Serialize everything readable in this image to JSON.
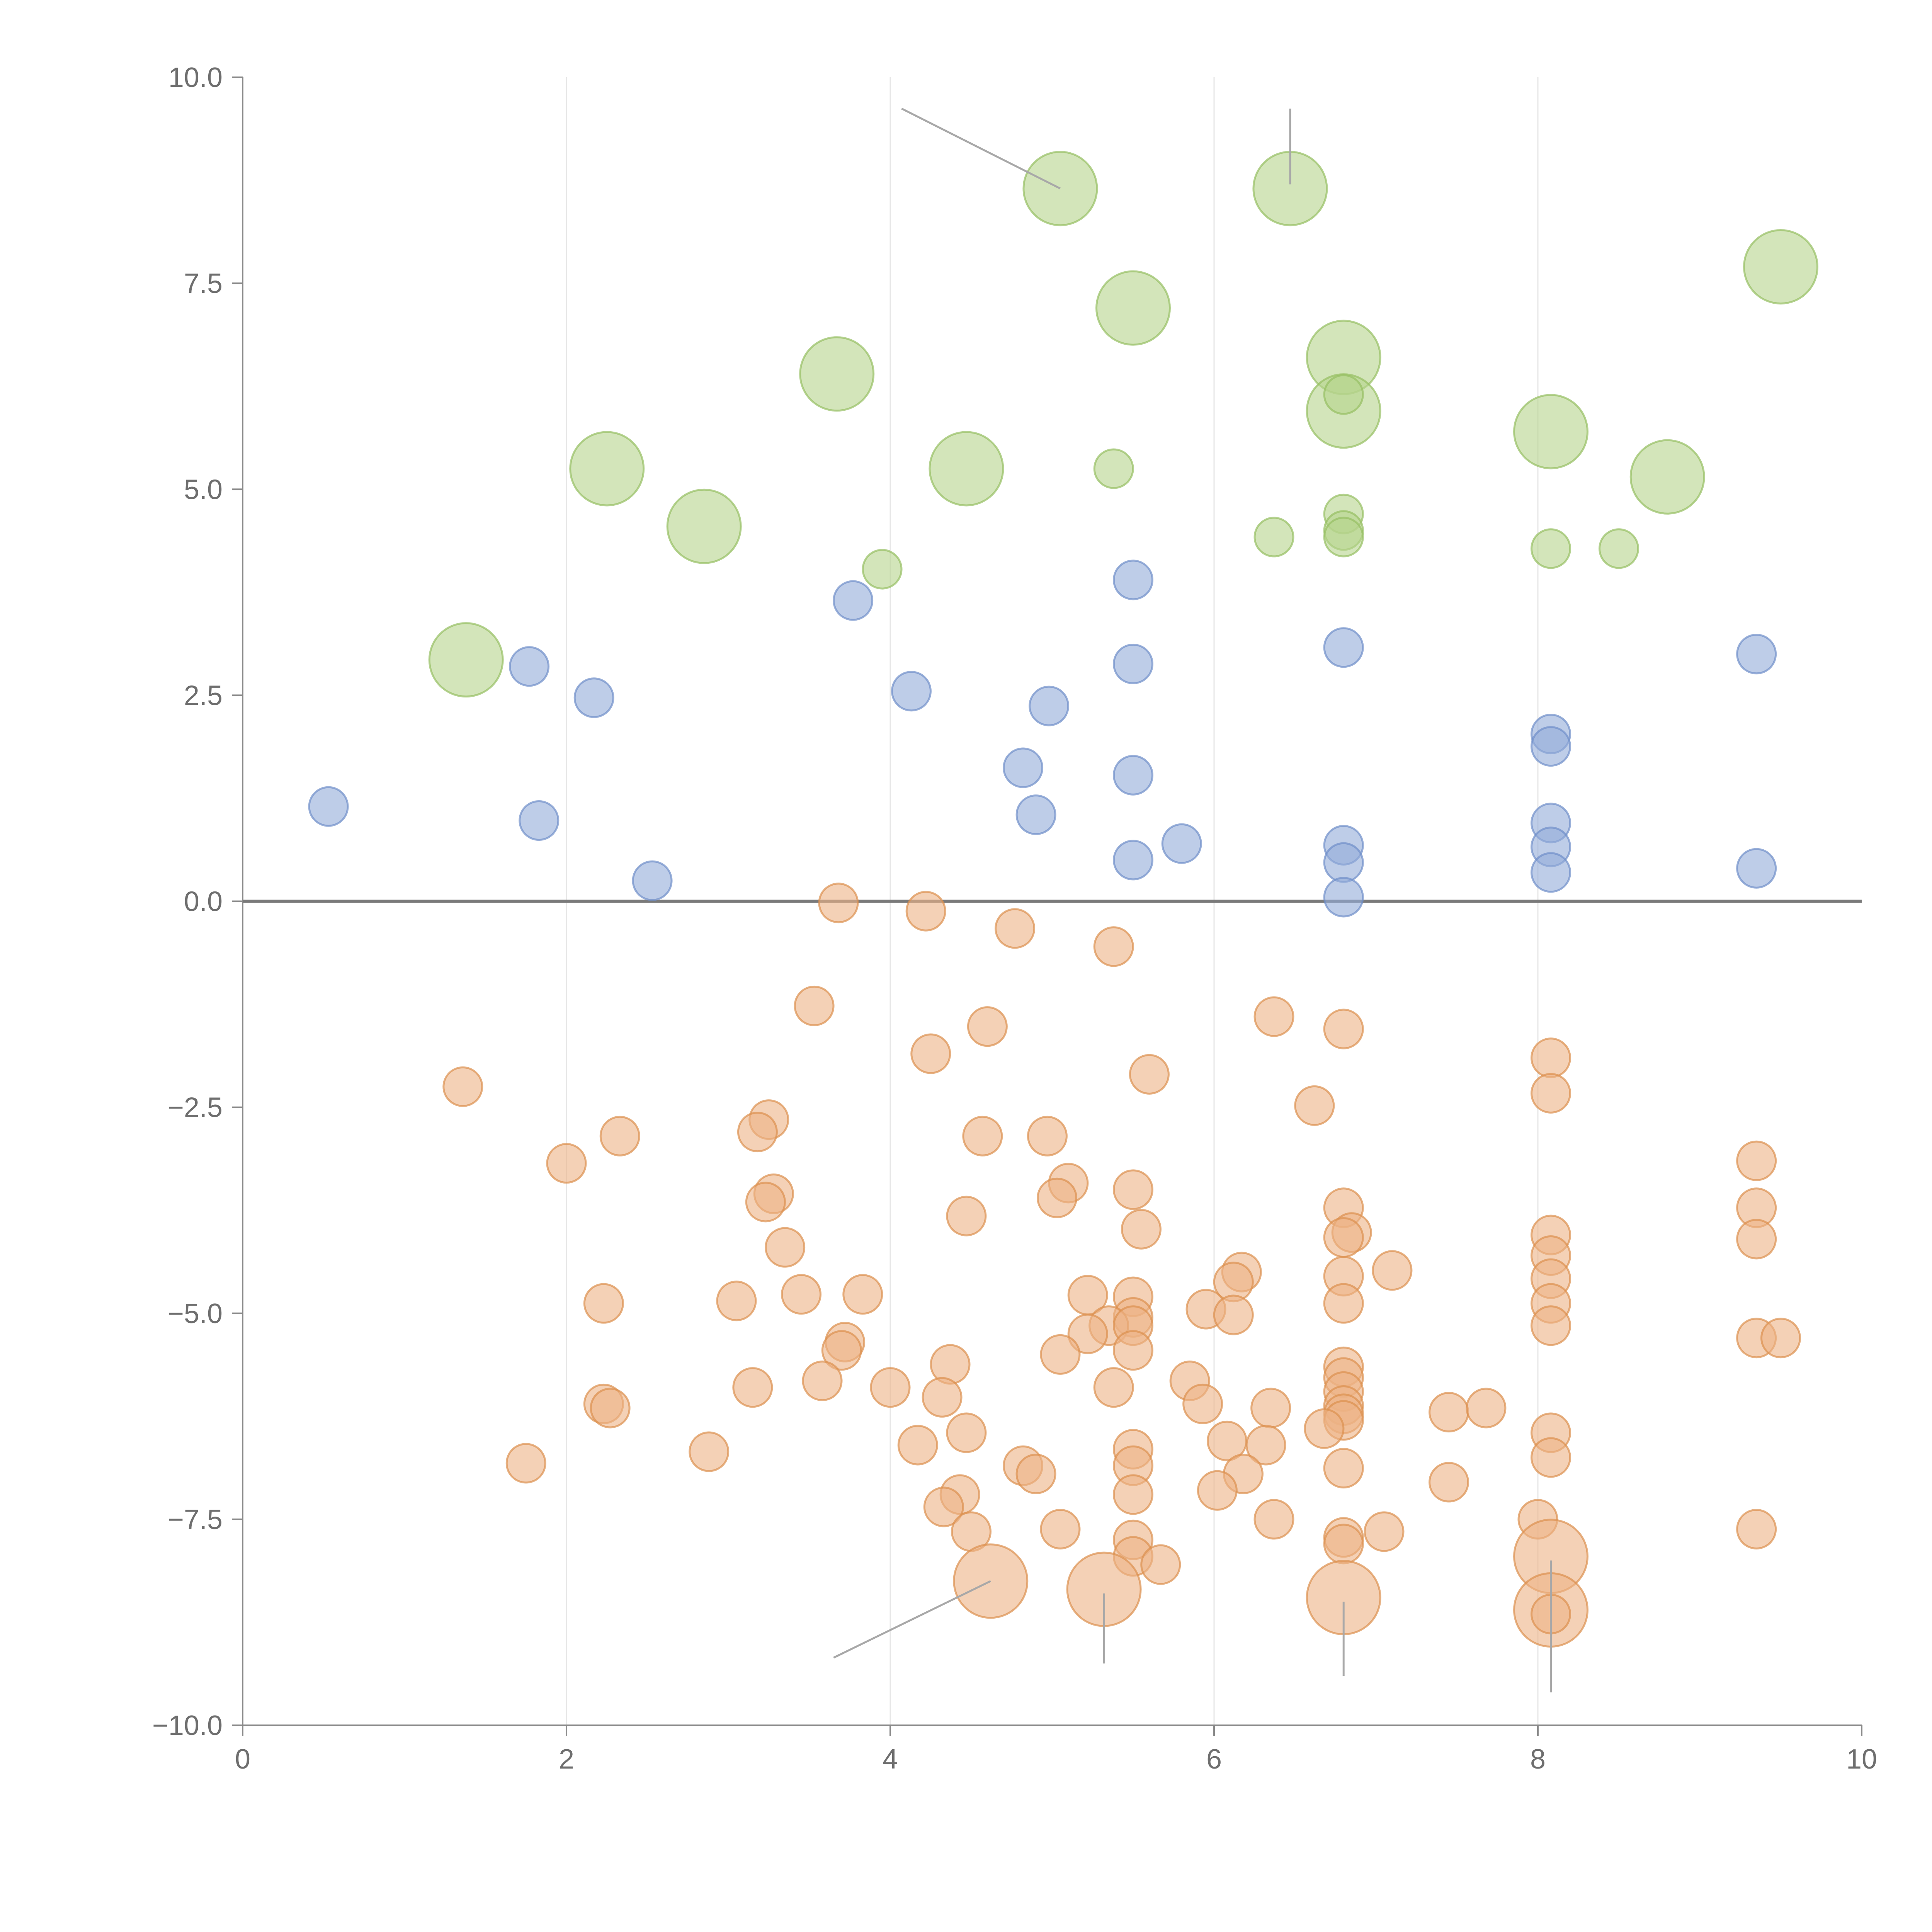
{
  "chart_data": {
    "type": "scatter",
    "title": "",
    "xlabel": "",
    "ylabel": "",
    "xlim": [
      0,
      10
    ],
    "ylim": [
      -10,
      10
    ],
    "xticks": [
      0,
      2,
      4,
      6,
      8,
      10
    ],
    "xtick_labels": [
      "0",
      "2",
      "4",
      "6",
      "8",
      "10"
    ],
    "yticks": [
      -10,
      -7.5,
      -5,
      -2.5,
      0,
      2.5,
      5,
      7.5,
      10
    ],
    "ytick_labels": [
      "−10.0",
      "−7.5",
      "−5.0",
      "−2.5",
      "0.0",
      "2.5",
      "5.0",
      "7.5",
      "10.0"
    ],
    "grid": "vertical",
    "zero_line": true,
    "series": [
      {
        "name": "green",
        "color": "#b5d38c",
        "stroke": "#96bf63",
        "points": [
          [
            5.05,
            8.65,
            2
          ],
          [
            6.47,
            8.65,
            2
          ],
          [
            9.5,
            7.7,
            2
          ],
          [
            5.5,
            7.2,
            2
          ],
          [
            3.67,
            6.4,
            2
          ],
          [
            6.8,
            6.6,
            2
          ],
          [
            6.8,
            5.95,
            2
          ],
          [
            6.8,
            6.15,
            1
          ],
          [
            8.08,
            5.7,
            2
          ],
          [
            2.25,
            5.25,
            2
          ],
          [
            4.47,
            5.25,
            2
          ],
          [
            5.38,
            5.25,
            1
          ],
          [
            8.8,
            5.15,
            2
          ],
          [
            2.85,
            4.55,
            2
          ],
          [
            6.8,
            4.7,
            1
          ],
          [
            6.8,
            4.5,
            1
          ],
          [
            6.8,
            4.42,
            1
          ],
          [
            6.37,
            4.42,
            1
          ],
          [
            8.08,
            4.28,
            1
          ],
          [
            8.5,
            4.28,
            1
          ],
          [
            3.95,
            4.03,
            1
          ],
          [
            1.38,
            2.93,
            2
          ]
        ]
      },
      {
        "name": "blue",
        "color": "#92acd9",
        "stroke": "#6f8fc9",
        "points": [
          [
            5.5,
            3.9,
            1
          ],
          [
            3.77,
            3.65,
            1
          ],
          [
            6.8,
            3.08,
            1
          ],
          [
            9.35,
            3.0,
            1
          ],
          [
            1.77,
            2.85,
            1
          ],
          [
            5.5,
            2.88,
            1
          ],
          [
            2.17,
            2.47,
            1
          ],
          [
            4.13,
            2.55,
            1
          ],
          [
            4.98,
            2.37,
            1
          ],
          [
            8.08,
            2.03,
            1
          ],
          [
            8.08,
            1.88,
            1
          ],
          [
            4.82,
            1.62,
            1
          ],
          [
            5.5,
            1.53,
            1
          ],
          [
            0.53,
            1.15,
            1
          ],
          [
            1.83,
            0.98,
            1
          ],
          [
            4.9,
            1.05,
            1
          ],
          [
            8.08,
            0.95,
            1
          ],
          [
            6.8,
            0.68,
            1
          ],
          [
            8.08,
            0.66,
            1
          ],
          [
            5.8,
            0.7,
            1
          ],
          [
            6.8,
            0.47,
            1
          ],
          [
            5.5,
            0.5,
            1
          ],
          [
            9.35,
            0.4,
            1
          ],
          [
            8.08,
            0.35,
            1
          ],
          [
            2.53,
            0.25,
            1
          ],
          [
            6.8,
            0.05,
            1
          ]
        ]
      },
      {
        "name": "orange",
        "color": "#edb386",
        "stroke": "#dc904f",
        "points": [
          [
            3.68,
            -0.02,
            1
          ],
          [
            4.22,
            -0.12,
            1
          ],
          [
            4.77,
            -0.33,
            1
          ],
          [
            5.38,
            -0.55,
            1
          ],
          [
            3.53,
            -1.27,
            1
          ],
          [
            4.6,
            -1.52,
            1
          ],
          [
            6.37,
            -1.4,
            1
          ],
          [
            6.8,
            -1.55,
            1
          ],
          [
            4.25,
            -1.85,
            1
          ],
          [
            8.08,
            -1.9,
            1
          ],
          [
            5.6,
            -2.1,
            1
          ],
          [
            1.36,
            -2.25,
            1
          ],
          [
            8.08,
            -2.33,
            1
          ],
          [
            6.62,
            -2.48,
            1
          ],
          [
            3.25,
            -2.65,
            1
          ],
          [
            2.33,
            -2.85,
            1
          ],
          [
            3.18,
            -2.8,
            1
          ],
          [
            4.57,
            -2.85,
            1
          ],
          [
            4.97,
            -2.85,
            1
          ],
          [
            2.0,
            -3.18,
            1
          ],
          [
            9.35,
            -3.15,
            1
          ],
          [
            5.5,
            -3.5,
            1
          ],
          [
            3.28,
            -3.55,
            1
          ],
          [
            3.23,
            -3.65,
            1
          ],
          [
            5.1,
            -3.42,
            1
          ],
          [
            5.03,
            -3.6,
            1
          ],
          [
            6.8,
            -3.72,
            1
          ],
          [
            9.35,
            -3.72,
            1
          ],
          [
            4.47,
            -3.82,
            1
          ],
          [
            5.55,
            -3.98,
            1
          ],
          [
            6.85,
            -4.02,
            1
          ],
          [
            6.8,
            -4.08,
            1
          ],
          [
            8.08,
            -4.05,
            1
          ],
          [
            9.35,
            -4.1,
            1
          ],
          [
            3.35,
            -4.2,
            1
          ],
          [
            8.08,
            -4.3,
            1
          ],
          [
            7.1,
            -4.48,
            1
          ],
          [
            6.17,
            -4.5,
            1
          ],
          [
            6.12,
            -4.62,
            1
          ],
          [
            6.8,
            -4.55,
            1
          ],
          [
            8.08,
            -4.58,
            1
          ],
          [
            3.45,
            -4.77,
            1
          ],
          [
            3.83,
            -4.77,
            1
          ],
          [
            5.5,
            -4.8,
            1
          ],
          [
            5.22,
            -4.78,
            1
          ],
          [
            2.23,
            -4.88,
            1
          ],
          [
            3.05,
            -4.85,
            1
          ],
          [
            6.8,
            -4.88,
            1
          ],
          [
            8.08,
            -4.88,
            1
          ],
          [
            5.95,
            -4.95,
            1
          ],
          [
            6.12,
            -5.02,
            1
          ],
          [
            5.5,
            -5.05,
            1
          ],
          [
            5.35,
            -5.15,
            1
          ],
          [
            5.5,
            -5.15,
            1
          ],
          [
            8.08,
            -5.15,
            1
          ],
          [
            5.22,
            -5.25,
            1
          ],
          [
            9.35,
            -5.3,
            1
          ],
          [
            9.5,
            -5.3,
            1
          ],
          [
            3.72,
            -5.35,
            1
          ],
          [
            3.7,
            -5.45,
            1
          ],
          [
            5.05,
            -5.5,
            1
          ],
          [
            5.5,
            -5.45,
            1
          ],
          [
            4.37,
            -5.62,
            1
          ],
          [
            6.8,
            -5.65,
            1
          ],
          [
            6.8,
            -5.78,
            1
          ],
          [
            3.58,
            -5.82,
            1
          ],
          [
            5.85,
            -5.82,
            1
          ],
          [
            4.0,
            -5.9,
            1
          ],
          [
            3.15,
            -5.9,
            1
          ],
          [
            5.38,
            -5.9,
            1
          ],
          [
            6.8,
            -5.95,
            1
          ],
          [
            4.32,
            -6.02,
            1
          ],
          [
            5.93,
            -6.1,
            1
          ],
          [
            2.23,
            -6.1,
            1
          ],
          [
            2.27,
            -6.15,
            1
          ],
          [
            6.8,
            -6.12,
            1
          ],
          [
            6.35,
            -6.15,
            1
          ],
          [
            7.45,
            -6.2,
            1
          ],
          [
            7.68,
            -6.15,
            1
          ],
          [
            6.8,
            -6.22,
            1
          ],
          [
            6.8,
            -6.3,
            1
          ],
          [
            6.68,
            -6.4,
            1
          ],
          [
            4.47,
            -6.45,
            1
          ],
          [
            8.08,
            -6.45,
            1
          ],
          [
            6.08,
            -6.55,
            1
          ],
          [
            4.17,
            -6.6,
            1
          ],
          [
            6.32,
            -6.6,
            1
          ],
          [
            5.5,
            -6.65,
            1
          ],
          [
            2.88,
            -6.68,
            1
          ],
          [
            8.08,
            -6.75,
            1
          ],
          [
            1.75,
            -6.82,
            1
          ],
          [
            5.5,
            -6.85,
            1
          ],
          [
            4.82,
            -6.85,
            1
          ],
          [
            6.8,
            -6.88,
            1
          ],
          [
            4.9,
            -6.95,
            1
          ],
          [
            6.18,
            -6.95,
            1
          ],
          [
            7.45,
            -7.05,
            1
          ],
          [
            6.02,
            -7.15,
            1
          ],
          [
            4.43,
            -7.2,
            1
          ],
          [
            5.5,
            -7.2,
            1
          ],
          [
            4.33,
            -7.35,
            1
          ],
          [
            6.37,
            -7.5,
            1
          ],
          [
            8.0,
            -7.5,
            1
          ],
          [
            5.05,
            -7.62,
            1
          ],
          [
            4.5,
            -7.65,
            1
          ],
          [
            7.05,
            -7.65,
            1
          ],
          [
            9.35,
            -7.62,
            1
          ],
          [
            6.8,
            -7.72,
            1
          ],
          [
            5.5,
            -7.75,
            1
          ],
          [
            6.8,
            -7.8,
            1
          ],
          [
            5.5,
            -7.95,
            1
          ],
          [
            8.08,
            -7.95,
            2
          ],
          [
            5.67,
            -8.05,
            1
          ],
          [
            4.62,
            -8.25,
            2
          ],
          [
            5.32,
            -8.35,
            2
          ],
          [
            6.8,
            -8.45,
            2
          ],
          [
            8.08,
            -8.6,
            2
          ],
          [
            8.08,
            -8.65,
            1
          ]
        ]
      }
    ]
  }
}
